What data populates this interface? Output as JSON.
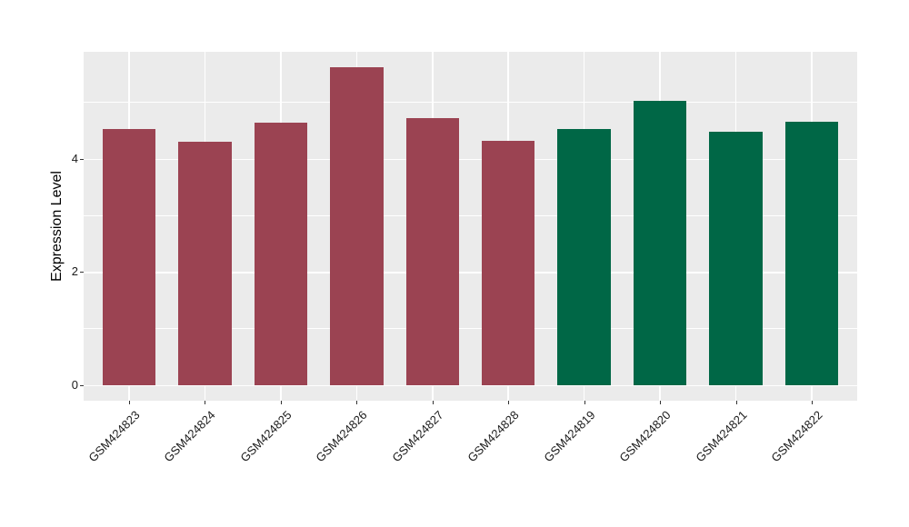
{
  "figure": {
    "background": "#FFFFFF"
  },
  "chart_data": {
    "type": "bar",
    "title": "",
    "xlabel": "",
    "ylabel": "Expression Level",
    "categories": [
      "GSM424823",
      "GSM424824",
      "GSM424825",
      "GSM424826",
      "GSM424827",
      "GSM424828",
      "GSM424819",
      "GSM424820",
      "GSM424821",
      "GSM424822"
    ],
    "values": [
      4.52,
      4.3,
      4.63,
      5.61,
      4.71,
      4.32,
      4.52,
      5.03,
      4.47,
      4.66
    ],
    "bar_colors": [
      "#9B4352",
      "#9B4352",
      "#9B4352",
      "#9B4352",
      "#9B4352",
      "#9B4352",
      "#006746",
      "#006746",
      "#006746",
      "#006746"
    ],
    "group_colors": {
      "maroon": "#9B4352",
      "green": "#006746"
    },
    "ylim": [
      -0.28,
      5.89
    ],
    "yticks": [
      0,
      2,
      4
    ],
    "yticks_minor": [
      1,
      3,
      5
    ],
    "grid": true,
    "legend_position": "none",
    "panel_bg": "#EBEBEB",
    "grid_color": "#FFFFFF",
    "tick_mark_color": "#333333",
    "tick_label_color": "#1A1A1A",
    "axis_title_color": "#000000"
  }
}
